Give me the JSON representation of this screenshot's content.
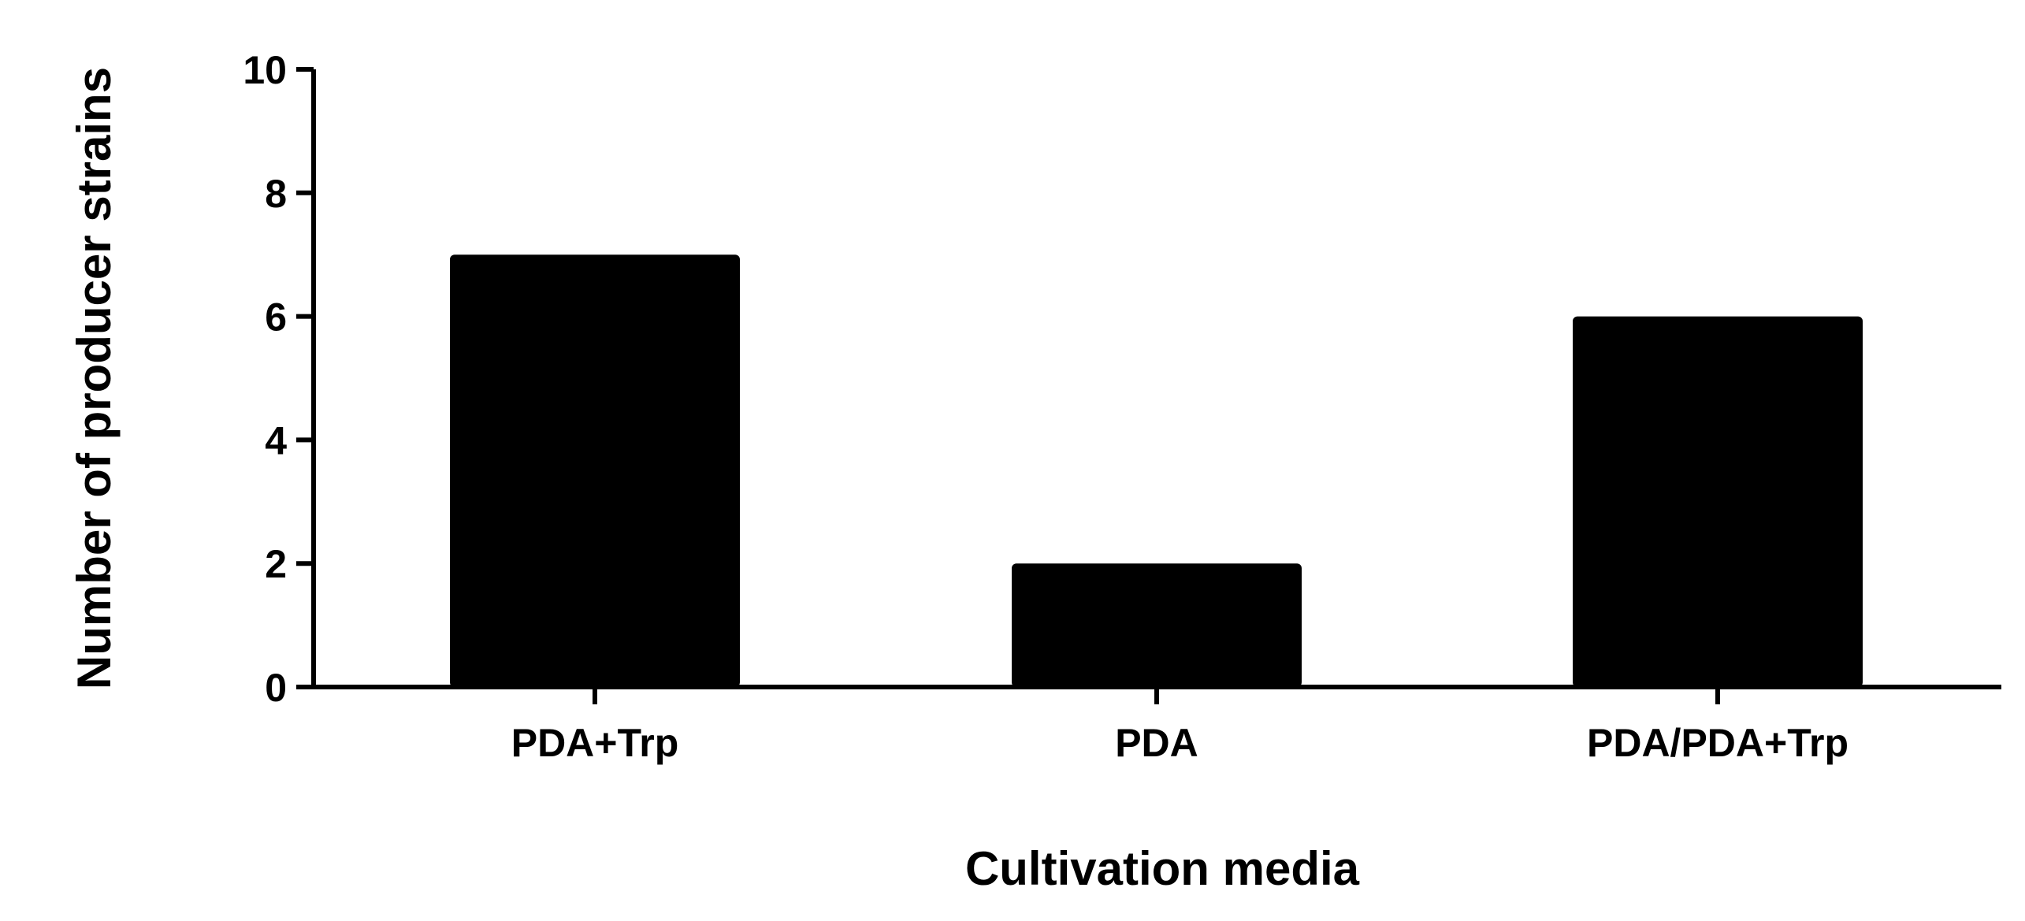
{
  "chart_data": {
    "type": "bar",
    "categories": [
      "PDA+Trp",
      "PDA",
      "PDA/PDA+Trp"
    ],
    "values": [
      7,
      2,
      6
    ],
    "xlabel": "Cultivation media",
    "ylabel": "Number of producer strains",
    "ylim": [
      0,
      10
    ],
    "yticks": [
      "0",
      "2",
      "4",
      "6",
      "8",
      "10"
    ],
    "grid": false,
    "bar_color": "#000000"
  }
}
